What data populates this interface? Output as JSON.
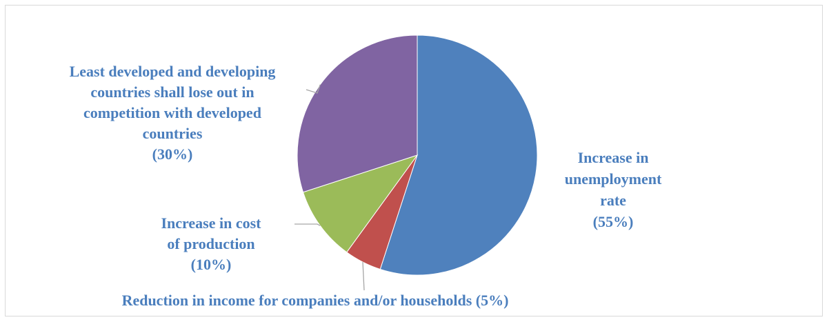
{
  "chart_data": {
    "type": "pie",
    "title": "",
    "legend": "none",
    "slices": [
      {
        "label": "Increase in unemployment rate",
        "value": 55,
        "value_label": "(55%)",
        "color": "#4f81bd",
        "label_lines": [
          "Increase in",
          "unemployment",
          "rate"
        ]
      },
      {
        "label": "Reduction in income for companies and/or households",
        "value": 5,
        "value_label": "(5%)",
        "color": "#c0504d",
        "label_lines": [
          "Reduction in income for companies and/or households (5%)"
        ]
      },
      {
        "label": "Increase in cost of production",
        "value": 10,
        "value_label": "(10%)",
        "color": "#9bbb59",
        "label_lines": [
          "Increase in cost",
          "of production"
        ]
      },
      {
        "label": "Least developed and developing countries shall lose out in competition with developed countries",
        "value": 30,
        "value_label": "(30%)",
        "color": "#8064a2",
        "label_lines": [
          "Least developed and developing",
          "countries shall lose out in",
          "competition with developed",
          "countries"
        ]
      }
    ]
  }
}
